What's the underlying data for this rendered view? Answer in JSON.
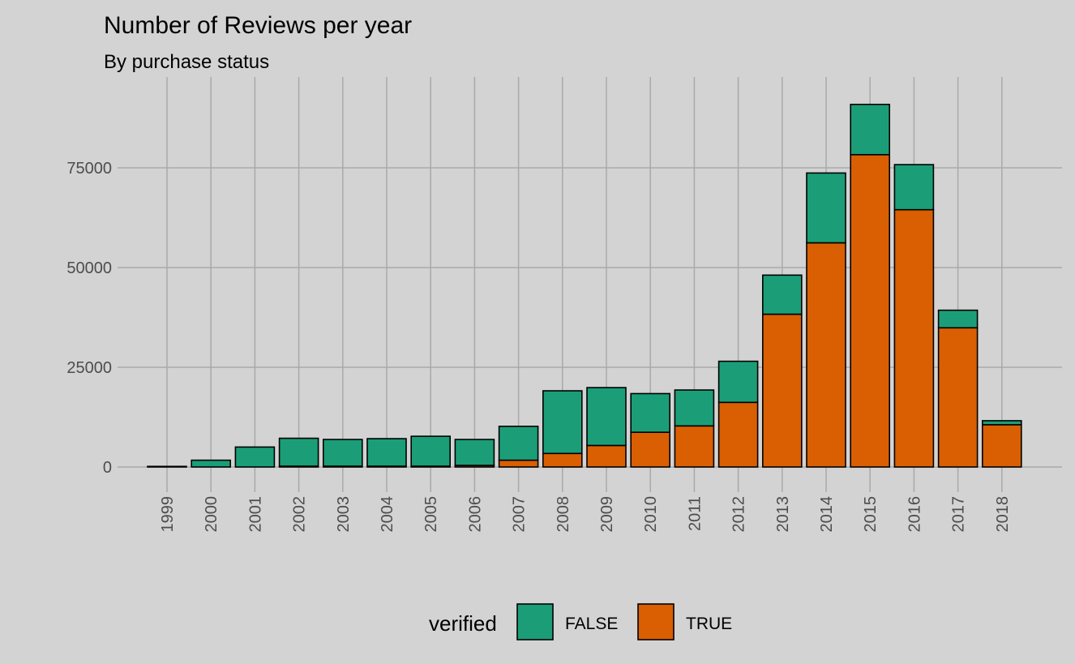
{
  "chart_data": {
    "type": "bar",
    "stacked": true,
    "title": "Number of Reviews per year",
    "subtitle": "By purchase status",
    "xlabel": "",
    "ylabel": "",
    "categories": [
      "1999",
      "2000",
      "2001",
      "2002",
      "2003",
      "2004",
      "2005",
      "2006",
      "2007",
      "2008",
      "2009",
      "2010",
      "2011",
      "2012",
      "2013",
      "2014",
      "2015",
      "2016",
      "2017",
      "2018"
    ],
    "series": [
      {
        "name": "TRUE",
        "color": "#d95f02",
        "values": [
          0,
          0,
          0,
          200,
          200,
          200,
          200,
          400,
          1700,
          3400,
          5400,
          8700,
          10300,
          16200,
          38300,
          56200,
          78300,
          64500,
          34900,
          10600
        ]
      },
      {
        "name": "FALSE",
        "color": "#1b9e77",
        "values": [
          150,
          1700,
          5000,
          7000,
          6700,
          6900,
          7500,
          6500,
          8500,
          15700,
          14500,
          9700,
          9000,
          10300,
          9800,
          17500,
          12600,
          11300,
          4400,
          1000
        ]
      }
    ],
    "yticks": [
      0,
      25000,
      50000,
      75000
    ],
    "ylim": [
      0,
      91000
    ],
    "grid": true,
    "legend": {
      "title": "verified",
      "position": "bottom",
      "order": [
        "FALSE",
        "TRUE"
      ]
    }
  }
}
